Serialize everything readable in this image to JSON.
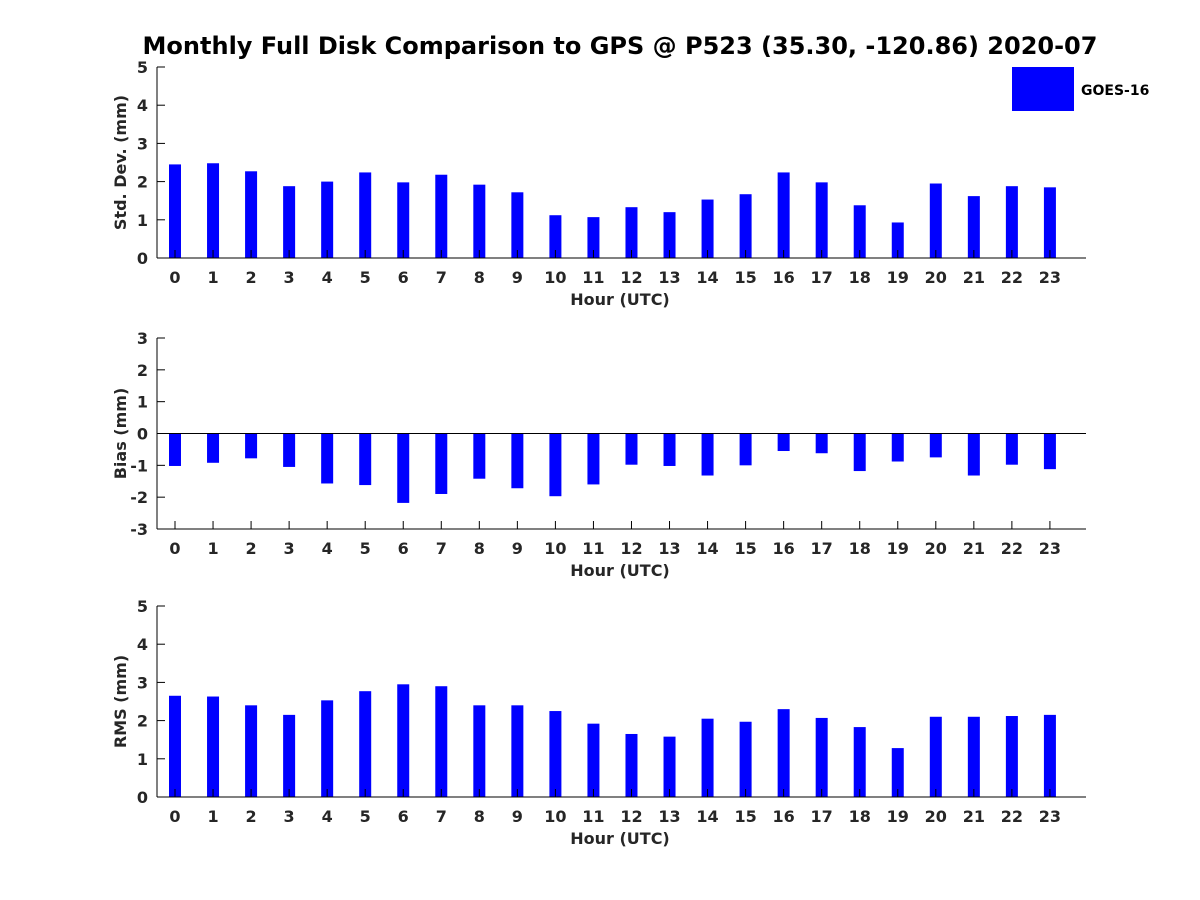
{
  "title": "Monthly Full Disk Comparison to GPS @ P523 (35.30, -120.86) 2020-07",
  "legend": {
    "label": "GOES-16",
    "color": "#0000ff"
  },
  "chart_data": [
    {
      "type": "bar",
      "xlabel": "Hour (UTC)",
      "ylabel": "Std. Dev. (mm)",
      "ylim": [
        0,
        5
      ],
      "yticks": [
        0,
        1,
        2,
        3,
        4,
        5
      ],
      "categories": [
        "0",
        "1",
        "2",
        "3",
        "4",
        "5",
        "6",
        "7",
        "8",
        "9",
        "10",
        "11",
        "12",
        "13",
        "14",
        "15",
        "16",
        "17",
        "18",
        "19",
        "20",
        "21",
        "22",
        "23"
      ],
      "series": [
        {
          "name": "GOES-16",
          "color": "#0000ff",
          "values": [
            2.45,
            2.48,
            2.27,
            1.88,
            2.0,
            2.24,
            1.98,
            2.18,
            1.92,
            1.72,
            1.12,
            1.07,
            1.33,
            1.2,
            1.53,
            1.67,
            2.24,
            1.98,
            1.38,
            0.93,
            1.95,
            1.62,
            1.88,
            1.85
          ]
        }
      ]
    },
    {
      "type": "bar",
      "xlabel": "Hour (UTC)",
      "ylabel": "Bias (mm)",
      "ylim": [
        -3,
        3
      ],
      "yticks": [
        -3,
        -2,
        -1,
        0,
        1,
        2,
        3
      ],
      "categories": [
        "0",
        "1",
        "2",
        "3",
        "4",
        "5",
        "6",
        "7",
        "8",
        "9",
        "10",
        "11",
        "12",
        "13",
        "14",
        "15",
        "16",
        "17",
        "18",
        "19",
        "20",
        "21",
        "22",
        "23"
      ],
      "series": [
        {
          "name": "GOES-16",
          "color": "#0000ff",
          "values": [
            -1.02,
            -0.92,
            -0.78,
            -1.05,
            -1.57,
            -1.62,
            -2.18,
            -1.9,
            -1.42,
            -1.72,
            -1.97,
            -1.6,
            -0.98,
            -1.02,
            -1.32,
            -1.0,
            -0.55,
            -0.62,
            -1.18,
            -0.88,
            -0.75,
            -1.32,
            -0.98,
            -1.12
          ]
        }
      ]
    },
    {
      "type": "bar",
      "xlabel": "Hour (UTC)",
      "ylabel": "RMS (mm)",
      "ylim": [
        0,
        5
      ],
      "yticks": [
        0,
        1,
        2,
        3,
        4,
        5
      ],
      "categories": [
        "0",
        "1",
        "2",
        "3",
        "4",
        "5",
        "6",
        "7",
        "8",
        "9",
        "10",
        "11",
        "12",
        "13",
        "14",
        "15",
        "16",
        "17",
        "18",
        "19",
        "20",
        "21",
        "22",
        "23"
      ],
      "series": [
        {
          "name": "GOES-16",
          "color": "#0000ff",
          "values": [
            2.65,
            2.63,
            2.4,
            2.15,
            2.53,
            2.77,
            2.95,
            2.9,
            2.4,
            2.4,
            2.25,
            1.92,
            1.65,
            1.58,
            2.05,
            1.97,
            2.3,
            2.07,
            1.83,
            1.28,
            2.1,
            2.1,
            2.12,
            2.15
          ]
        }
      ]
    }
  ]
}
